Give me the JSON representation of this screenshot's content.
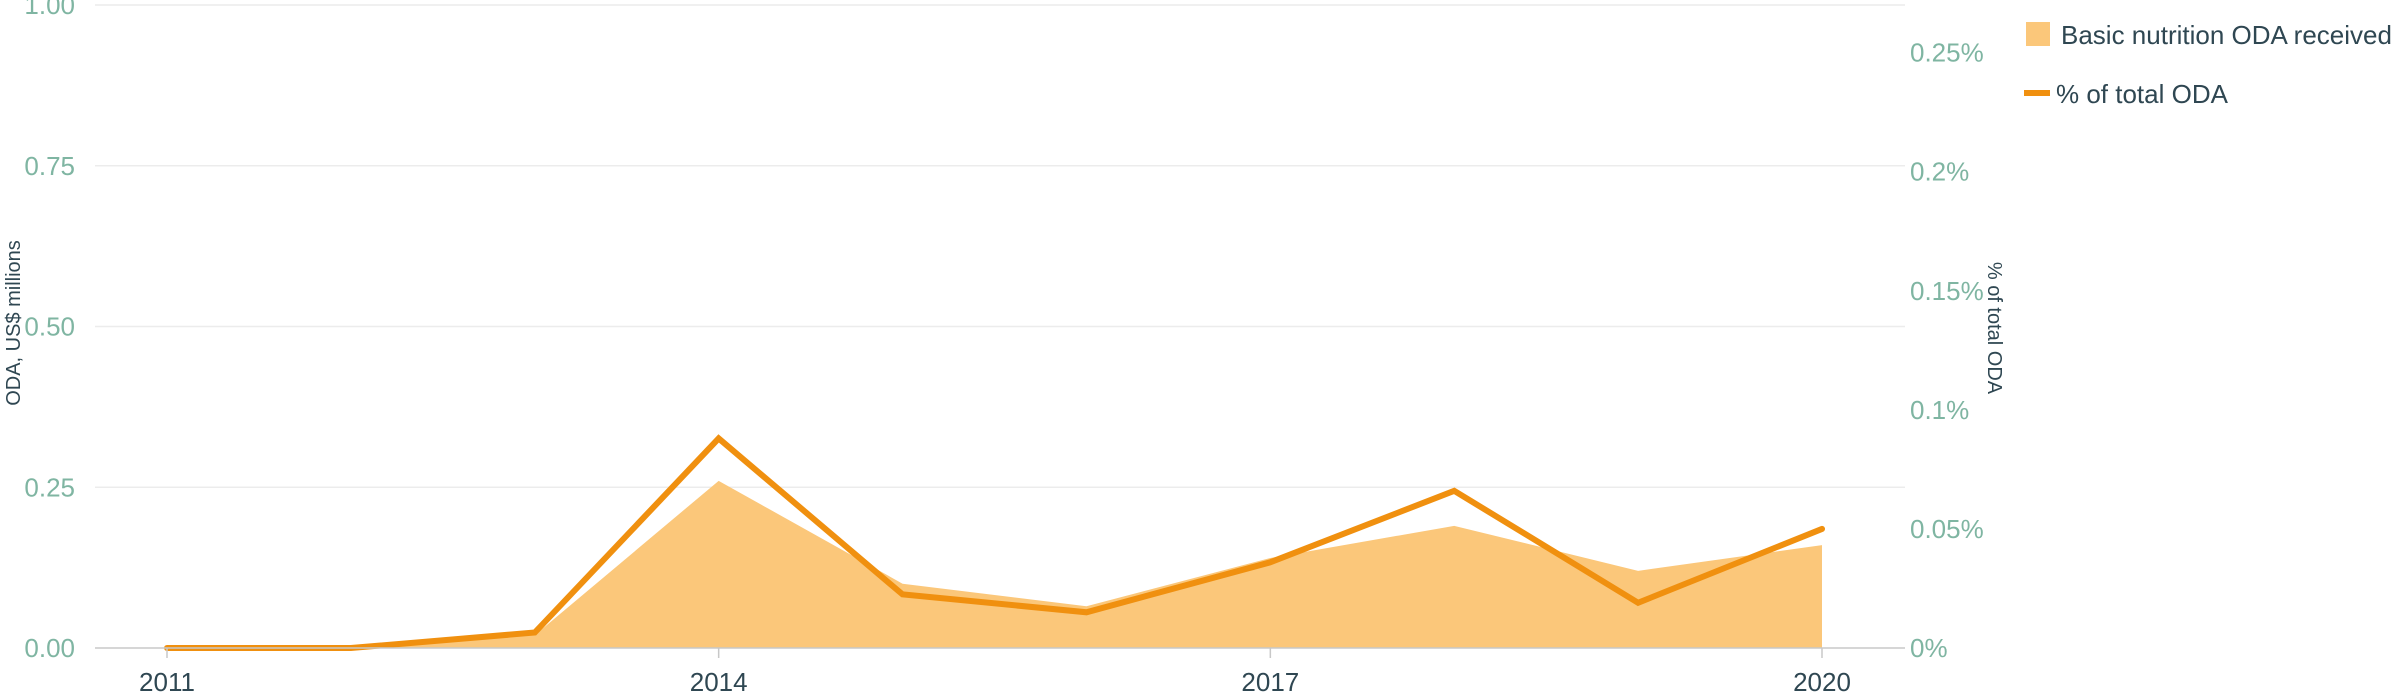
{
  "chart_data": {
    "type": "area",
    "x": [
      2011,
      2012,
      2013,
      2014,
      2015,
      2016,
      2017,
      2018,
      2019,
      2020
    ],
    "x_ticks": [
      "2011",
      "2014",
      "2017",
      "2020"
    ],
    "series": [
      {
        "name": "Basic nutrition ODA received",
        "kind": "area",
        "axis": "left",
        "color": "#fbc77a",
        "values": [
          0.0,
          0.0,
          0.02,
          0.26,
          0.1,
          0.065,
          0.14,
          0.19,
          0.12,
          0.16
        ]
      },
      {
        "name": "% of total ODA",
        "kind": "line",
        "axis": "right",
        "color": "#f0900f",
        "values": [
          0.0,
          0.0,
          0.0065,
          0.088,
          0.0225,
          0.015,
          0.036,
          0.066,
          0.019,
          0.05
        ]
      }
    ],
    "y_left": {
      "label": "ODA, US$ millions",
      "range": [
        0,
        1
      ],
      "ticks": [
        0,
        0.25,
        0.5,
        0.75,
        1
      ],
      "tick_labels": [
        "0.00",
        "0.25",
        "0.50",
        "0.75",
        "1.00"
      ]
    },
    "y_right": {
      "label": "% of total ODA",
      "range": [
        0,
        0.27
      ],
      "ticks": [
        0,
        0.05,
        0.1,
        0.15,
        0.2,
        0.25
      ],
      "tick_labels": [
        "0%",
        "0.05%",
        "0.1%",
        "0.15%",
        "0.2%",
        "0.25%"
      ]
    },
    "grid": true,
    "legend_position": "top-right",
    "tick_color": "#7fb5a2",
    "text_color": "#2f4752"
  }
}
